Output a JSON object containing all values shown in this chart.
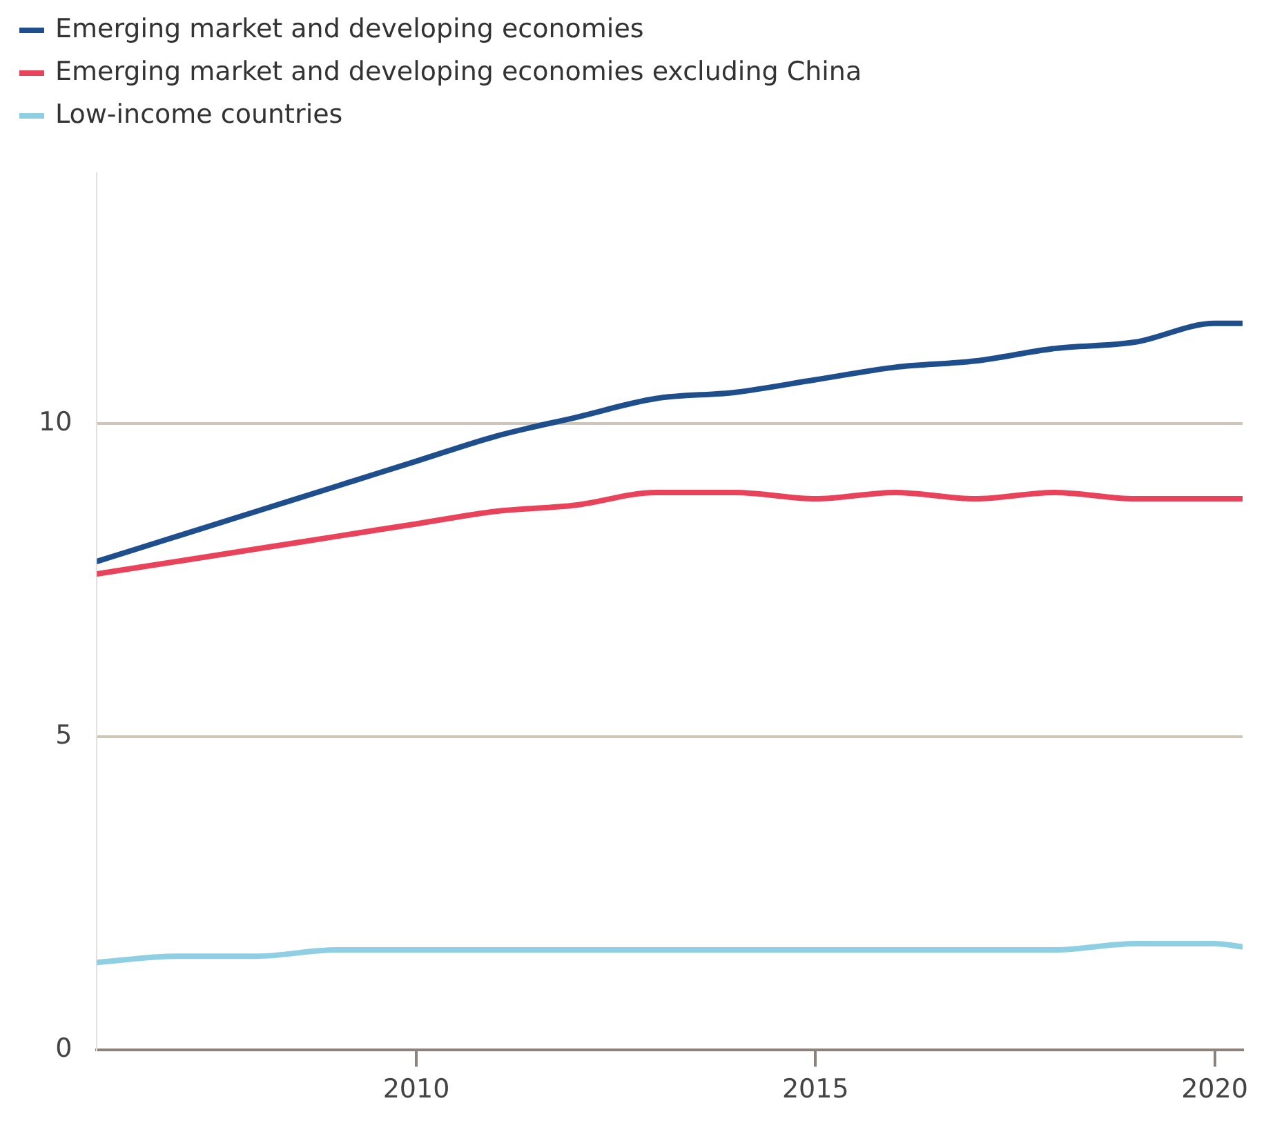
{
  "chart_data": {
    "type": "line",
    "x": [
      2006,
      2007,
      2008,
      2009,
      2010,
      2011,
      2012,
      2013,
      2014,
      2015,
      2016,
      2017,
      2018,
      2019,
      2020,
      2020.35
    ],
    "series": [
      {
        "name": "Emerging market and developing economies",
        "color": "#1f4e8c",
        "values": [
          7.8,
          8.2,
          8.6,
          9.0,
          9.4,
          9.8,
          10.1,
          10.4,
          10.5,
          10.7,
          10.9,
          11.0,
          11.2,
          11.3,
          11.6,
          11.6
        ]
      },
      {
        "name": "Emerging market and developing economies excluding China",
        "color": "#e8435a",
        "values": [
          7.6,
          7.8,
          8.0,
          8.2,
          8.4,
          8.6,
          8.7,
          8.9,
          8.9,
          8.8,
          8.9,
          8.8,
          8.9,
          8.8,
          8.8,
          8.8
        ]
      },
      {
        "name": "Low-income countries",
        "color": "#8fcfe3",
        "values": [
          1.4,
          1.5,
          1.5,
          1.6,
          1.6,
          1.6,
          1.6,
          1.6,
          1.6,
          1.6,
          1.6,
          1.6,
          1.6,
          1.7,
          1.7,
          1.65
        ]
      }
    ],
    "xlim": [
      2006,
      2020.35
    ],
    "xticks": [
      2010,
      2015,
      2020
    ],
    "ylim": [
      0,
      14
    ],
    "yticks": [
      0,
      5,
      10
    ],
    "grid": "y",
    "legend": "top left",
    "marker": "none",
    "line_style": "solid"
  }
}
